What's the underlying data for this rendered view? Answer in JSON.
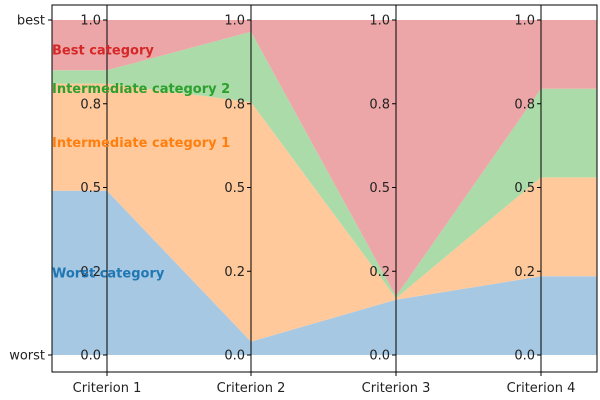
{
  "chart_data": {
    "type": "area",
    "criteria": [
      "Criterion 1",
      "Criterion 2",
      "Criterion 3",
      "Criterion 4"
    ],
    "y_axis_labels": {
      "top": "best",
      "bottom": "worst"
    },
    "axis_ticks": [
      {
        "value": 0.0,
        "label": "0.0"
      },
      {
        "value": 0.25,
        "label": "0.2"
      },
      {
        "value": 0.5,
        "label": "0.5"
      },
      {
        "value": 0.75,
        "label": "0.8"
      },
      {
        "value": 1.0,
        "label": "1.0"
      }
    ],
    "ylim": [
      0,
      1
    ],
    "boundaries": [
      [
        0.49,
        0.04,
        0.165,
        0.235
      ],
      [
        0.81,
        0.755,
        0.17,
        0.53
      ],
      [
        0.85,
        0.965,
        0.175,
        0.795
      ]
    ],
    "categories": [
      {
        "name": "Worst category",
        "color": "#a6c8e2",
        "label_color": "#1f77b4",
        "label_value": 0.245
      },
      {
        "name": "Intermediate category 1",
        "color": "#ffc99b",
        "label_color": "#ff7f0e",
        "label_value": 0.635
      },
      {
        "name": "Intermediate category 2",
        "color": "#aadba8",
        "label_color": "#2ca02c",
        "label_value": 0.795
      },
      {
        "name": "Best category",
        "color": "#eda6a7",
        "label_color": "#d62728",
        "label_value": 0.91
      }
    ]
  }
}
